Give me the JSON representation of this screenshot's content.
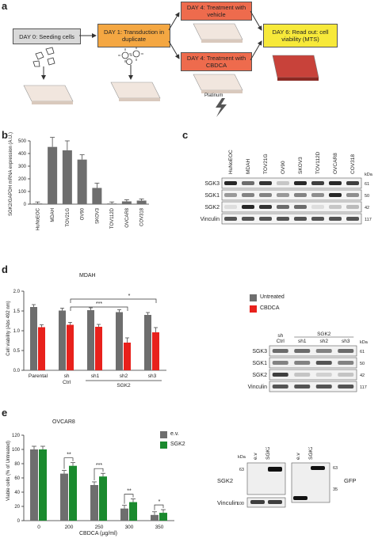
{
  "panel_a": {
    "label": "a",
    "day0": "DAY 0: Seeding cells",
    "day1": "DAY 1: Transduction in duplicate",
    "day4_vehicle": "DAY 4: Treatment with vehicle",
    "day4_cbdca": "DAY 4: Treatment with CBDCA",
    "day6": "DAY 6: Read out: cell viability (MTS)",
    "platinum": "Platinum"
  },
  "panel_b": {
    "label": "b",
    "ylabel": "SGK2/GAPDH mRNA expression (A.U.)"
  },
  "panel_c": {
    "label": "c",
    "lanes": [
      "HuNoEOC",
      "MDAH",
      "TOV21G",
      "OV90",
      "SKOV3",
      "TOV112D",
      "OVCAR8",
      "COV318"
    ],
    "rows": [
      "SGK3",
      "SGK1",
      "SGK2",
      "Vinculin"
    ],
    "kda_label": "kDa",
    "kda": [
      "61",
      "50",
      "42",
      "117"
    ]
  },
  "panel_d": {
    "label": "d",
    "title": "MDAH",
    "ylabel": "Cell viability (Abs 492 nm)",
    "legend_untreated": "Untreated",
    "legend_cbdca": "CBDCA",
    "xlabels": [
      "Parental",
      "sh",
      "sh1",
      "sh2",
      "sh3"
    ],
    "ctrl": "Ctrl",
    "group": "SGK2",
    "sig1": "*",
    "sig2": "***",
    "blot_lanes": [
      "sh",
      "sh1",
      "sh2",
      "sh3"
    ],
    "blot_ctrl": "Ctrl",
    "blot_group": "SGK2",
    "blot_rows": [
      "SGK3",
      "SGK1",
      "SGK2",
      "Vinculin"
    ],
    "blot_kda_label": "kDa",
    "blot_kda": [
      "61",
      "50",
      "42",
      "117"
    ]
  },
  "panel_e": {
    "label": "e",
    "title": "OVCAR8",
    "ylabel": "Viable cells (% of Untreated)",
    "xlabel": "CBDCA (µg/ml)",
    "legend_ev": "e.v.",
    "legend_sgk2": "SGK2",
    "sig": [
      "**",
      "***",
      "**",
      "*"
    ],
    "blot_kda_label": "kDa",
    "blot_lanes": [
      "e.v",
      "SGK2"
    ],
    "blot_rows": [
      "SGK2",
      "Vinculin"
    ],
    "blot_left_kda": [
      "63",
      "100"
    ],
    "blot_right_kda": [
      "63",
      "35"
    ],
    "blot_right_label": "GFP"
  },
  "colors": {
    "gray": "#6e6e6e",
    "red": "#e8211c",
    "green": "#1a8a2e"
  },
  "chart_data": [
    {
      "type": "bar",
      "categories": [
        "HuNoEOC",
        "MDAH",
        "TOV21G",
        "OV90",
        "SKOV3",
        "TOV112D",
        "OVCAR8",
        "COV318"
      ],
      "values": [
        5,
        452,
        425,
        352,
        128,
        5,
        22,
        28
      ],
      "ylabel": "SGK2/GAPDH mRNA expression (A.U.)",
      "ylim": [
        0,
        500
      ],
      "yticks": [
        "0",
        "100",
        "200",
        "300",
        "400",
        "500"
      ]
    },
    {
      "type": "bar",
      "categories": [
        "Parental",
        "sh Ctrl",
        "sh1",
        "sh2",
        "sh3"
      ],
      "series": [
        {
          "name": "Untreated",
          "values": [
            1.6,
            1.51,
            1.52,
            1.47,
            1.4
          ]
        },
        {
          "name": "CBDCA",
          "values": [
            1.09,
            1.15,
            1.1,
            0.7,
            0.96
          ]
        }
      ],
      "ylabel": "Cell viability (Abs 492 nm)",
      "ylim": [
        0,
        2.0
      ],
      "yticks": [
        "0.0",
        "0.5",
        "1.0",
        "1.5",
        "2.0"
      ]
    },
    {
      "type": "bar",
      "categories": [
        "0",
        "200",
        "250",
        "300",
        "350"
      ],
      "series": [
        {
          "name": "e.v.",
          "values": [
            100,
            66,
            50,
            17,
            8
          ]
        },
        {
          "name": "SGK2",
          "values": [
            100,
            77,
            62,
            26,
            11
          ]
        }
      ],
      "ylabel": "Viable cells (% of Untreated)",
      "xlabel": "CBDCA (µg/ml)",
      "ylim": [
        0,
        120
      ],
      "yticks": [
        "0",
        "20",
        "40",
        "60",
        "80",
        "100",
        "120"
      ]
    }
  ]
}
